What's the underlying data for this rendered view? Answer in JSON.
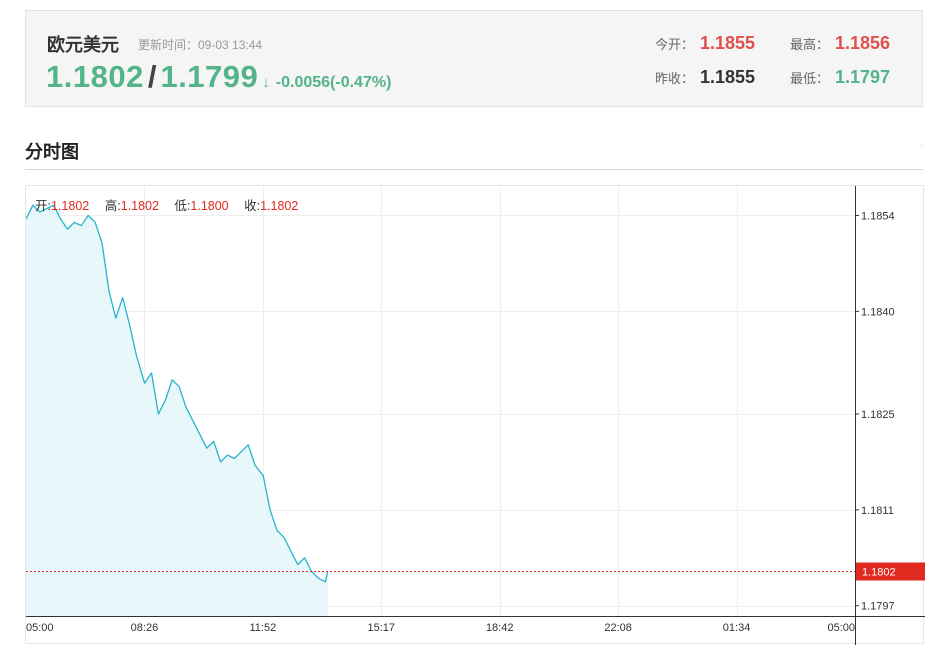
{
  "quote": {
    "pair_name": "欧元美元",
    "update_time": "更新时间：09-03 13:44",
    "bid": "1.1802",
    "separator": "/",
    "ask": "1.1799",
    "arrow": "↓",
    "change": "-0.0056(-0.47%)",
    "open_label": "今开：",
    "open_value": "1.1855",
    "high_label": "最高：",
    "high_value": "1.1856",
    "prev_close_label": "昨收：",
    "prev_close_value": "1.1855",
    "low_label": "最低：",
    "low_value": "1.1797",
    "colors": {
      "up": "#e0504c",
      "down": "#53b48a"
    }
  },
  "section": {
    "title": "分时图",
    "marker": "·"
  },
  "chart_header": {
    "open_label": "开:",
    "open_value": "1.1802",
    "high_label": "高:",
    "high_value": "1.1802",
    "low_label": "低:",
    "low_value": "1.1800",
    "close_label": "收:",
    "close_value": "1.1802"
  },
  "chart_data": {
    "type": "area",
    "title": "",
    "xlabel": "",
    "ylabel": "",
    "x_tick_labels": [
      "05:00",
      "08:26",
      "11:52",
      "15:17",
      "18:42",
      "22:08",
      "01:34",
      "05:00"
    ],
    "y_tick_labels": [
      "1.1854",
      "1.1840",
      "1.1825",
      "1.1811",
      "1.1797"
    ],
    "ylim": [
      1.17955,
      1.18583
    ],
    "y_axis_side": "right",
    "grid": true,
    "last_price": 1.1802,
    "last_price_label": "1.1802",
    "series": [
      {
        "x": [
          "05:00",
          "05:12",
          "05:24",
          "05:36",
          "05:48",
          "06:00",
          "06:12",
          "06:24",
          "06:36",
          "06:48",
          "07:00",
          "07:12",
          "07:24",
          "07:36",
          "07:48",
          "08:00",
          "08:12",
          "08:26",
          "08:38",
          "08:50",
          "09:02",
          "09:14",
          "09:26",
          "09:38",
          "09:50",
          "10:02",
          "10:14",
          "10:26",
          "10:38",
          "10:50",
          "11:02",
          "11:14",
          "11:26",
          "11:38",
          "11:52",
          "12:04",
          "12:16",
          "12:28",
          "12:40",
          "12:52",
          "13:04",
          "13:16",
          "13:28",
          "13:40",
          "13:44"
        ],
        "values": [
          1.18535,
          1.18555,
          1.18545,
          1.1855,
          1.18555,
          1.18535,
          1.1852,
          1.1853,
          1.18525,
          1.1854,
          1.1853,
          1.185,
          1.1843,
          1.1839,
          1.1842,
          1.1838,
          1.18335,
          1.18295,
          1.1831,
          1.1825,
          1.1827,
          1.183,
          1.1829,
          1.1826,
          1.1824,
          1.1822,
          1.182,
          1.1821,
          1.1818,
          1.1819,
          1.18185,
          1.18195,
          1.18205,
          1.18175,
          1.1816,
          1.1811,
          1.1808,
          1.1807,
          1.1805,
          1.1803,
          1.1804,
          1.1802,
          1.1801,
          1.18005,
          1.1802
        ]
      }
    ],
    "colors": {
      "line": "#27b3cc",
      "fill": "#e8f8fa",
      "last_line": "#e02a1f",
      "last_tag": "#e02a1f"
    }
  }
}
